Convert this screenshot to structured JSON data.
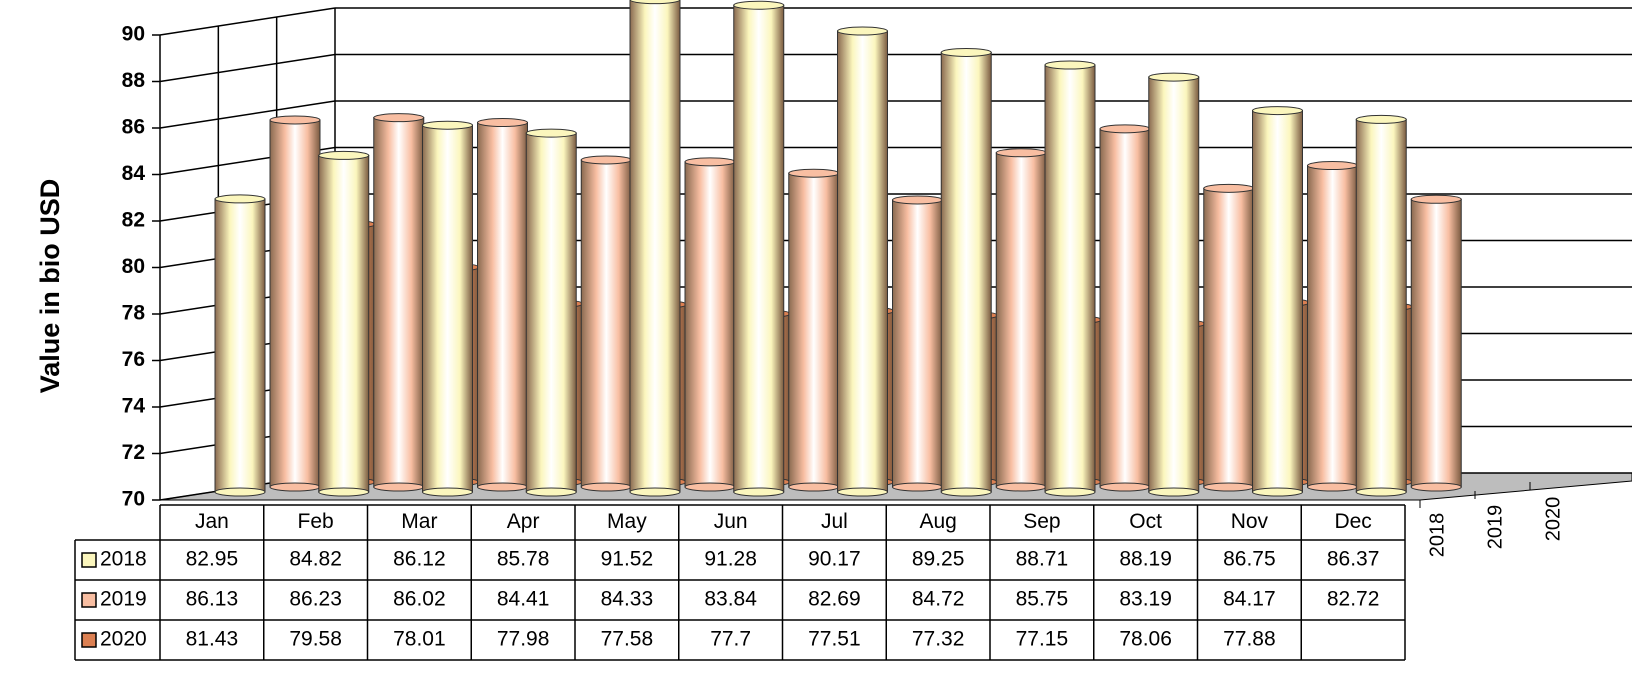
{
  "chart_data": {
    "type": "bar3d",
    "y_label": "Value in bio USD",
    "categories": [
      "Jan",
      "Feb",
      "Mar",
      "Apr",
      "May",
      "Jun",
      "Jul",
      "Aug",
      "Sep",
      "Oct",
      "Nov",
      "Dec"
    ],
    "series": [
      {
        "name": "2018",
        "color": "#fbf6bd",
        "values": [
          82.95,
          84.82,
          86.12,
          85.78,
          91.52,
          91.28,
          90.17,
          89.25,
          88.71,
          88.19,
          86.75,
          86.37
        ]
      },
      {
        "name": "2019",
        "color": "#f8bea2",
        "values": [
          86.13,
          86.23,
          86.02,
          84.41,
          84.33,
          83.84,
          82.69,
          84.72,
          85.75,
          83.19,
          84.17,
          82.72
        ]
      },
      {
        "name": "2020",
        "color": "#dc8052",
        "values": [
          81.43,
          79.58,
          78.01,
          77.98,
          77.58,
          77.7,
          77.51,
          77.32,
          77.15,
          78.06,
          77.88,
          null
        ]
      }
    ],
    "ylim": [
      70,
      90
    ],
    "yticks": [
      70,
      72,
      74,
      76,
      78,
      80,
      82,
      84,
      86,
      88,
      90
    ],
    "grid": true
  }
}
